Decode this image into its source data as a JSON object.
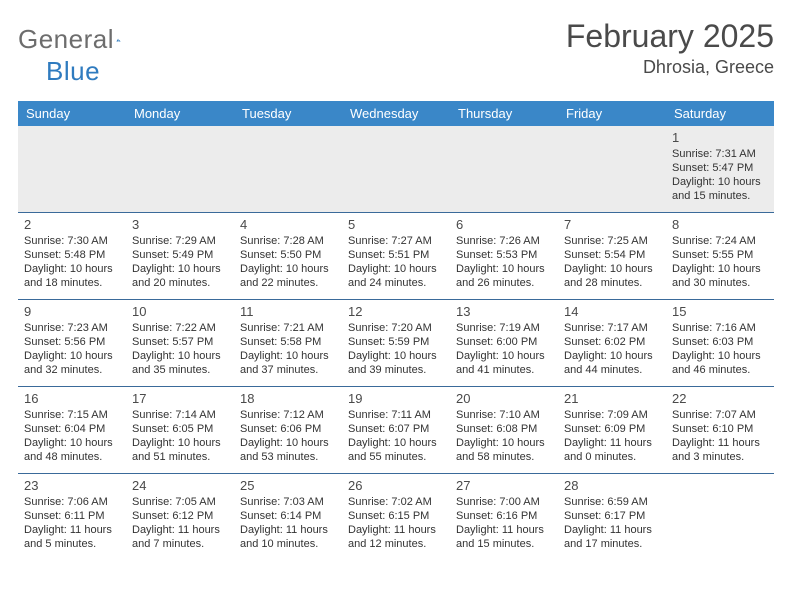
{
  "brand": {
    "word1": "General",
    "word2": "Blue"
  },
  "title": "February 2025",
  "location": "Dhrosia, Greece",
  "colors": {
    "header_bg": "#3a87c8",
    "header_text": "#ffffff",
    "rule": "#3a6a9a",
    "first_week_bg": "#ececec",
    "text": "#333333",
    "title_text": "#4a4a4a",
    "logo_gray": "#6d6d6d",
    "logo_blue": "#2f7bbf"
  },
  "day_names": [
    "Sunday",
    "Monday",
    "Tuesday",
    "Wednesday",
    "Thursday",
    "Friday",
    "Saturday"
  ],
  "weeks": [
    [
      null,
      null,
      null,
      null,
      null,
      null,
      {
        "n": "1",
        "sr": "Sunrise: 7:31 AM",
        "ss": "Sunset: 5:47 PM",
        "d1": "Daylight: 10 hours",
        "d2": "and 15 minutes."
      }
    ],
    [
      {
        "n": "2",
        "sr": "Sunrise: 7:30 AM",
        "ss": "Sunset: 5:48 PM",
        "d1": "Daylight: 10 hours",
        "d2": "and 18 minutes."
      },
      {
        "n": "3",
        "sr": "Sunrise: 7:29 AM",
        "ss": "Sunset: 5:49 PM",
        "d1": "Daylight: 10 hours",
        "d2": "and 20 minutes."
      },
      {
        "n": "4",
        "sr": "Sunrise: 7:28 AM",
        "ss": "Sunset: 5:50 PM",
        "d1": "Daylight: 10 hours",
        "d2": "and 22 minutes."
      },
      {
        "n": "5",
        "sr": "Sunrise: 7:27 AM",
        "ss": "Sunset: 5:51 PM",
        "d1": "Daylight: 10 hours",
        "d2": "and 24 minutes."
      },
      {
        "n": "6",
        "sr": "Sunrise: 7:26 AM",
        "ss": "Sunset: 5:53 PM",
        "d1": "Daylight: 10 hours",
        "d2": "and 26 minutes."
      },
      {
        "n": "7",
        "sr": "Sunrise: 7:25 AM",
        "ss": "Sunset: 5:54 PM",
        "d1": "Daylight: 10 hours",
        "d2": "and 28 minutes."
      },
      {
        "n": "8",
        "sr": "Sunrise: 7:24 AM",
        "ss": "Sunset: 5:55 PM",
        "d1": "Daylight: 10 hours",
        "d2": "and 30 minutes."
      }
    ],
    [
      {
        "n": "9",
        "sr": "Sunrise: 7:23 AM",
        "ss": "Sunset: 5:56 PM",
        "d1": "Daylight: 10 hours",
        "d2": "and 32 minutes."
      },
      {
        "n": "10",
        "sr": "Sunrise: 7:22 AM",
        "ss": "Sunset: 5:57 PM",
        "d1": "Daylight: 10 hours",
        "d2": "and 35 minutes."
      },
      {
        "n": "11",
        "sr": "Sunrise: 7:21 AM",
        "ss": "Sunset: 5:58 PM",
        "d1": "Daylight: 10 hours",
        "d2": "and 37 minutes."
      },
      {
        "n": "12",
        "sr": "Sunrise: 7:20 AM",
        "ss": "Sunset: 5:59 PM",
        "d1": "Daylight: 10 hours",
        "d2": "and 39 minutes."
      },
      {
        "n": "13",
        "sr": "Sunrise: 7:19 AM",
        "ss": "Sunset: 6:00 PM",
        "d1": "Daylight: 10 hours",
        "d2": "and 41 minutes."
      },
      {
        "n": "14",
        "sr": "Sunrise: 7:17 AM",
        "ss": "Sunset: 6:02 PM",
        "d1": "Daylight: 10 hours",
        "d2": "and 44 minutes."
      },
      {
        "n": "15",
        "sr": "Sunrise: 7:16 AM",
        "ss": "Sunset: 6:03 PM",
        "d1": "Daylight: 10 hours",
        "d2": "and 46 minutes."
      }
    ],
    [
      {
        "n": "16",
        "sr": "Sunrise: 7:15 AM",
        "ss": "Sunset: 6:04 PM",
        "d1": "Daylight: 10 hours",
        "d2": "and 48 minutes."
      },
      {
        "n": "17",
        "sr": "Sunrise: 7:14 AM",
        "ss": "Sunset: 6:05 PM",
        "d1": "Daylight: 10 hours",
        "d2": "and 51 minutes."
      },
      {
        "n": "18",
        "sr": "Sunrise: 7:12 AM",
        "ss": "Sunset: 6:06 PM",
        "d1": "Daylight: 10 hours",
        "d2": "and 53 minutes."
      },
      {
        "n": "19",
        "sr": "Sunrise: 7:11 AM",
        "ss": "Sunset: 6:07 PM",
        "d1": "Daylight: 10 hours",
        "d2": "and 55 minutes."
      },
      {
        "n": "20",
        "sr": "Sunrise: 7:10 AM",
        "ss": "Sunset: 6:08 PM",
        "d1": "Daylight: 10 hours",
        "d2": "and 58 minutes."
      },
      {
        "n": "21",
        "sr": "Sunrise: 7:09 AM",
        "ss": "Sunset: 6:09 PM",
        "d1": "Daylight: 11 hours",
        "d2": "and 0 minutes."
      },
      {
        "n": "22",
        "sr": "Sunrise: 7:07 AM",
        "ss": "Sunset: 6:10 PM",
        "d1": "Daylight: 11 hours",
        "d2": "and 3 minutes."
      }
    ],
    [
      {
        "n": "23",
        "sr": "Sunrise: 7:06 AM",
        "ss": "Sunset: 6:11 PM",
        "d1": "Daylight: 11 hours",
        "d2": "and 5 minutes."
      },
      {
        "n": "24",
        "sr": "Sunrise: 7:05 AM",
        "ss": "Sunset: 6:12 PM",
        "d1": "Daylight: 11 hours",
        "d2": "and 7 minutes."
      },
      {
        "n": "25",
        "sr": "Sunrise: 7:03 AM",
        "ss": "Sunset: 6:14 PM",
        "d1": "Daylight: 11 hours",
        "d2": "and 10 minutes."
      },
      {
        "n": "26",
        "sr": "Sunrise: 7:02 AM",
        "ss": "Sunset: 6:15 PM",
        "d1": "Daylight: 11 hours",
        "d2": "and 12 minutes."
      },
      {
        "n": "27",
        "sr": "Sunrise: 7:00 AM",
        "ss": "Sunset: 6:16 PM",
        "d1": "Daylight: 11 hours",
        "d2": "and 15 minutes."
      },
      {
        "n": "28",
        "sr": "Sunrise: 6:59 AM",
        "ss": "Sunset: 6:17 PM",
        "d1": "Daylight: 11 hours",
        "d2": "and 17 minutes."
      },
      null
    ]
  ]
}
